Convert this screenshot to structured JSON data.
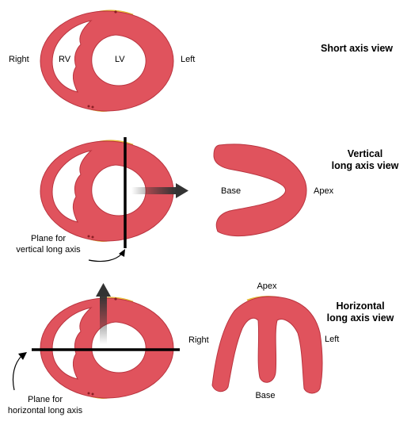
{
  "short_axis": {
    "title": "Short axis view",
    "label_right": "Right",
    "label_rv": "RV",
    "label_lv": "LV",
    "label_left": "Left"
  },
  "vertical": {
    "title_line1": "Vertical",
    "title_line2": "long axis view",
    "label_base": "Base",
    "label_apex": "Apex",
    "plane_line1": "Plane for",
    "plane_line2": "vertical long axis"
  },
  "horizontal": {
    "title_line1": "Horizontal",
    "title_line2": "long axis view",
    "label_apex": "Apex",
    "label_right": "Right",
    "label_left": "Left",
    "label_base": "Base",
    "plane_line1": "Plane for",
    "plane_line2": "horizontal long axis"
  },
  "colors": {
    "myocardium": "#e0535d",
    "epicardial_fat": "#f3cc3a",
    "plane_line": "#000000",
    "arrow": "#333333"
  }
}
